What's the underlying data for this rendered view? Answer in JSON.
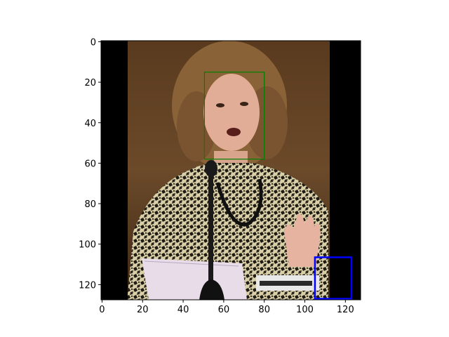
{
  "chart_data": {
    "type": "image",
    "title": "",
    "xlabel": "",
    "ylabel": "",
    "xlim": [
      -0.5,
      127.5
    ],
    "ylim": [
      127.5,
      -0.5
    ],
    "x_ticks": [
      0,
      20,
      40,
      60,
      80,
      100,
      120
    ],
    "y_ticks": [
      0,
      20,
      40,
      60,
      80,
      100,
      120
    ],
    "image": {
      "description": "photo of a woman with curly hair speaking at a microphone, raising her right hand",
      "letterbox_color": "#000000",
      "photo_extent_x": [
        13,
        112
      ]
    },
    "boxes": [
      {
        "label": "face-box",
        "color": "#008000",
        "x0": 50.5,
        "y0": 15,
        "x1": 80,
        "y1": 58
      },
      {
        "label": "blue-box",
        "color": "#0000ff",
        "x0": 105,
        "y0": 106.5,
        "x1": 123,
        "y1": 127
      }
    ]
  }
}
